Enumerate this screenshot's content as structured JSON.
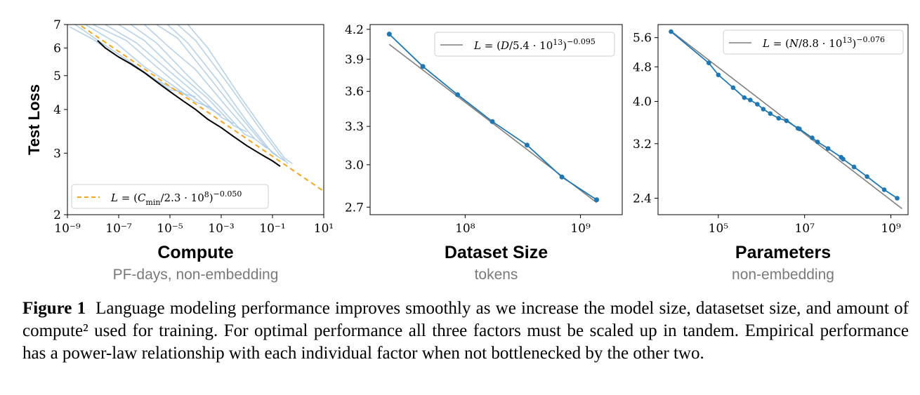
{
  "chart_data": [
    {
      "type": "line",
      "xscale": "log",
      "yscale": "log",
      "xlim": [
        1e-09,
        10
      ],
      "ylim": [
        2,
        7
      ],
      "xticks": [
        1e-09,
        1e-07,
        1e-05,
        0.001,
        0.1,
        10
      ],
      "xtick_labels": [
        "10⁻⁹",
        "10⁻⁷",
        "10⁻⁵",
        "10⁻³",
        "10⁻¹",
        "10¹"
      ],
      "yticks": [
        2,
        3,
        4,
        5,
        6,
        7
      ],
      "ytick_labels": [
        "2",
        "3",
        "4",
        "5",
        "6",
        "7"
      ],
      "ylabel": "Test Loss",
      "xlabel": "Compute",
      "xsublabel": "PF-days, non-embedding",
      "legend": "L = (C_min/2.3 · 10^8)^−0.050",
      "legend_position": "bottom-left",
      "fit": {
        "C0": 230000000.0,
        "alpha": 0.05
      },
      "frontier": {
        "x": [
          1.5e-08,
          3e-08,
          1e-07,
          3e-07,
          1e-06,
          3e-06,
          1e-05,
          3e-05,
          0.0001,
          0.0003,
          0.001,
          0.003,
          0.01,
          0.03,
          0.1,
          0.2
        ],
        "y": [
          6.3,
          6.0,
          5.65,
          5.4,
          5.1,
          4.8,
          4.5,
          4.25,
          4.0,
          3.75,
          3.55,
          3.35,
          3.15,
          3.0,
          2.85,
          2.75
        ]
      },
      "runs": [
        {
          "x": [
            1.2e-09,
            1e-08,
            1e-07,
            1e-06,
            1e-05,
            3e-05
          ],
          "y": [
            6.9,
            6.35,
            5.65,
            5.1,
            4.55,
            4.5
          ]
        },
        {
          "x": [
            2e-09,
            3e-08,
            3e-07,
            3e-06,
            3e-05,
            0.0001
          ],
          "y": [
            7.0,
            6.1,
            5.45,
            4.85,
            4.45,
            4.35
          ]
        },
        {
          "x": [
            5e-09,
            8e-08,
            1e-06,
            1e-05,
            0.0001,
            0.0004
          ],
          "y": [
            7.0,
            6.2,
            5.3,
            4.75,
            4.2,
            4.05
          ]
        },
        {
          "x": [
            1e-08,
            2e-07,
            3e-06,
            3e-05,
            0.0003,
            0.001
          ],
          "y": [
            7.0,
            6.3,
            5.3,
            4.6,
            4.05,
            3.85
          ]
        },
        {
          "x": [
            3e-08,
            5e-07,
            8e-06,
            0.0001,
            0.001,
            0.003
          ],
          "y": [
            7.0,
            6.2,
            5.2,
            4.45,
            3.8,
            3.65
          ]
        },
        {
          "x": [
            1e-07,
            1e-06,
            2e-05,
            0.0003,
            0.003,
            0.01
          ],
          "y": [
            7.0,
            6.3,
            5.1,
            4.3,
            3.6,
            3.45
          ]
        },
        {
          "x": [
            3e-07,
            3e-06,
            5e-05,
            0.0008,
            0.008,
            0.02
          ],
          "y": [
            7.0,
            6.2,
            5.0,
            4.1,
            3.4,
            3.3
          ]
        },
        {
          "x": [
            1e-06,
            1e-05,
            0.0001,
            0.002,
            0.02,
            0.06
          ],
          "y": [
            7.0,
            6.0,
            5.2,
            4.0,
            3.3,
            3.1
          ]
        },
        {
          "x": [
            3e-06,
            2e-05,
            0.0003,
            0.005,
            0.05,
            0.15
          ],
          "y": [
            7.0,
            6.4,
            5.0,
            3.85,
            3.15,
            2.95
          ]
        },
        {
          "x": [
            8e-06,
            5e-05,
            0.0008,
            0.01,
            0.1,
            0.3
          ],
          "y": [
            7.0,
            6.2,
            4.8,
            3.7,
            3.0,
            2.85
          ]
        },
        {
          "x": [
            2e-05,
            0.0001,
            0.002,
            0.03,
            0.2,
            0.4
          ],
          "y": [
            7.0,
            6.3,
            4.7,
            3.55,
            2.95,
            2.8
          ]
        },
        {
          "x": [
            5e-05,
            0.0003,
            0.005,
            0.06,
            0.3,
            0.6
          ],
          "y": [
            7.0,
            6.0,
            4.4,
            3.4,
            2.9,
            2.8
          ]
        }
      ]
    },
    {
      "type": "line",
      "xscale": "log",
      "yscale": "log",
      "xlim": [
        15000000.0,
        2300000000.0
      ],
      "ylim": [
        2.65,
        4.25
      ],
      "xticks": [
        100000000.0,
        1000000000.0
      ],
      "xtick_labels": [
        "10⁸",
        "10⁹"
      ],
      "yticks": [
        2.7,
        3.0,
        3.3,
        3.6,
        3.9,
        4.2
      ],
      "ytick_labels": [
        "2.7",
        "3.0",
        "3.3",
        "3.6",
        "3.9",
        "4.2"
      ],
      "xlabel": "Dataset Size",
      "xsublabel": "tokens",
      "legend": "L = (D/5.4 · 10^13)^−0.095",
      "legend_position": "top-right",
      "fit": {
        "C0": 54000000000000.0,
        "alpha": 0.095
      },
      "x": [
        22000000.0,
        43000000.0,
        86000000.0,
        172000000.0,
        344000000.0,
        690000000.0,
        1380000000.0
      ],
      "y": [
        4.15,
        3.83,
        3.57,
        3.34,
        3.15,
        2.91,
        2.75
      ]
    },
    {
      "type": "line",
      "xscale": "log",
      "yscale": "log",
      "xlim": [
        4000.0,
        2500000000.0
      ],
      "ylim": [
        2.2,
        6.0
      ],
      "xticks": [
        100000.0,
        10000000.0,
        1000000000.0
      ],
      "xtick_labels": [
        "10⁵",
        "10⁷",
        "10⁹"
      ],
      "yticks": [
        2.4,
        3.2,
        4.0,
        4.8,
        5.6
      ],
      "ytick_labels": [
        "2.4",
        "3.2",
        "4.0",
        "4.8",
        "5.6"
      ],
      "xlabel": "Parameters",
      "xsublabel": "non-embedding",
      "legend": "L = (N/8.8 · 10^13)^−0.076",
      "legend_position": "top-right",
      "fit": {
        "C0": 88000000000000.0,
        "alpha": 0.076
      },
      "x": [
        8000.0,
        60000.0,
        100000.0,
        220000.0,
        400000.0,
        550000.0,
        800000.0,
        1100000.0,
        1600000.0,
        2500000.0,
        3800000.0,
        7000000.0,
        7600000.0,
        15000000.0,
        20000000.0,
        35000000.0,
        70000000.0,
        78000000.0,
        140000000.0,
        280000000.0,
        700000000.0,
        1400000000.0
      ],
      "y": [
        5.78,
        4.9,
        4.6,
        4.3,
        4.08,
        4.03,
        3.94,
        3.84,
        3.75,
        3.66,
        3.61,
        3.47,
        3.46,
        3.3,
        3.23,
        3.12,
        2.98,
        2.95,
        2.83,
        2.69,
        2.51,
        2.4
      ]
    }
  ],
  "caption": {
    "label": "Figure 1",
    "text": "Language modeling performance improves smoothly as we increase the model size, datasetset size, and amount of compute² used for training. For optimal performance all three factors must be scaled up in tandem. Empirical performance has a power-law relationship with each individual factor when not bottlenecked by the other two."
  },
  "colors": {
    "runs": "#9fc3e0",
    "series": "#1f77b4",
    "fit": "#7f7f7f",
    "frontier": "#000000",
    "dashed_fit": "#f5a623"
  }
}
